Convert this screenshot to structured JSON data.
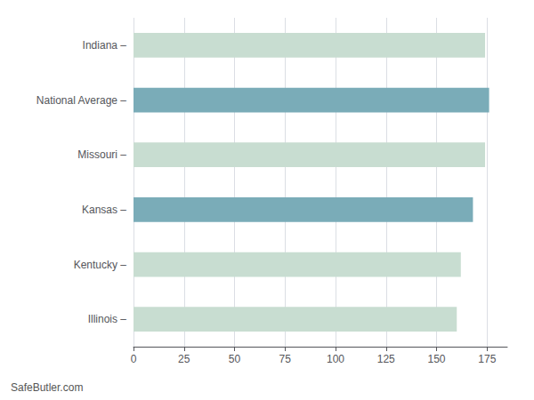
{
  "chart_data": {
    "type": "bar",
    "orientation": "horizontal",
    "categories": [
      "Indiana –",
      "National Average –",
      "Missouri –",
      "Kansas –",
      "Kentucky –",
      "Illinois –"
    ],
    "values": [
      174,
      176,
      174,
      168,
      162,
      160
    ],
    "colors": [
      "#c8ddd1",
      "#7aacb8",
      "#c8ddd1",
      "#7aacb8",
      "#c8ddd1",
      "#c8ddd1"
    ],
    "xlim": [
      0,
      185
    ],
    "xticks": [
      0,
      25,
      50,
      75,
      100,
      125,
      150,
      175
    ],
    "grid": true,
    "annotations": [
      "SafeButler.com"
    ]
  }
}
